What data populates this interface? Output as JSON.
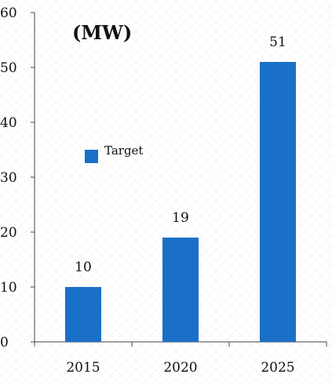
{
  "chart_data": {
    "type": "bar",
    "categories": [
      "2015",
      "2020",
      "2025"
    ],
    "series": [
      {
        "name": "Target",
        "values": [
          10,
          19,
          51
        ]
      }
    ],
    "ylabel": "(MW)",
    "ylim": [
      0,
      60
    ],
    "yticks": [
      0,
      10,
      20,
      30,
      40,
      50,
      60
    ],
    "grid": false,
    "legend_position": "middle-left",
    "bar_color": "#1a6fc7"
  }
}
